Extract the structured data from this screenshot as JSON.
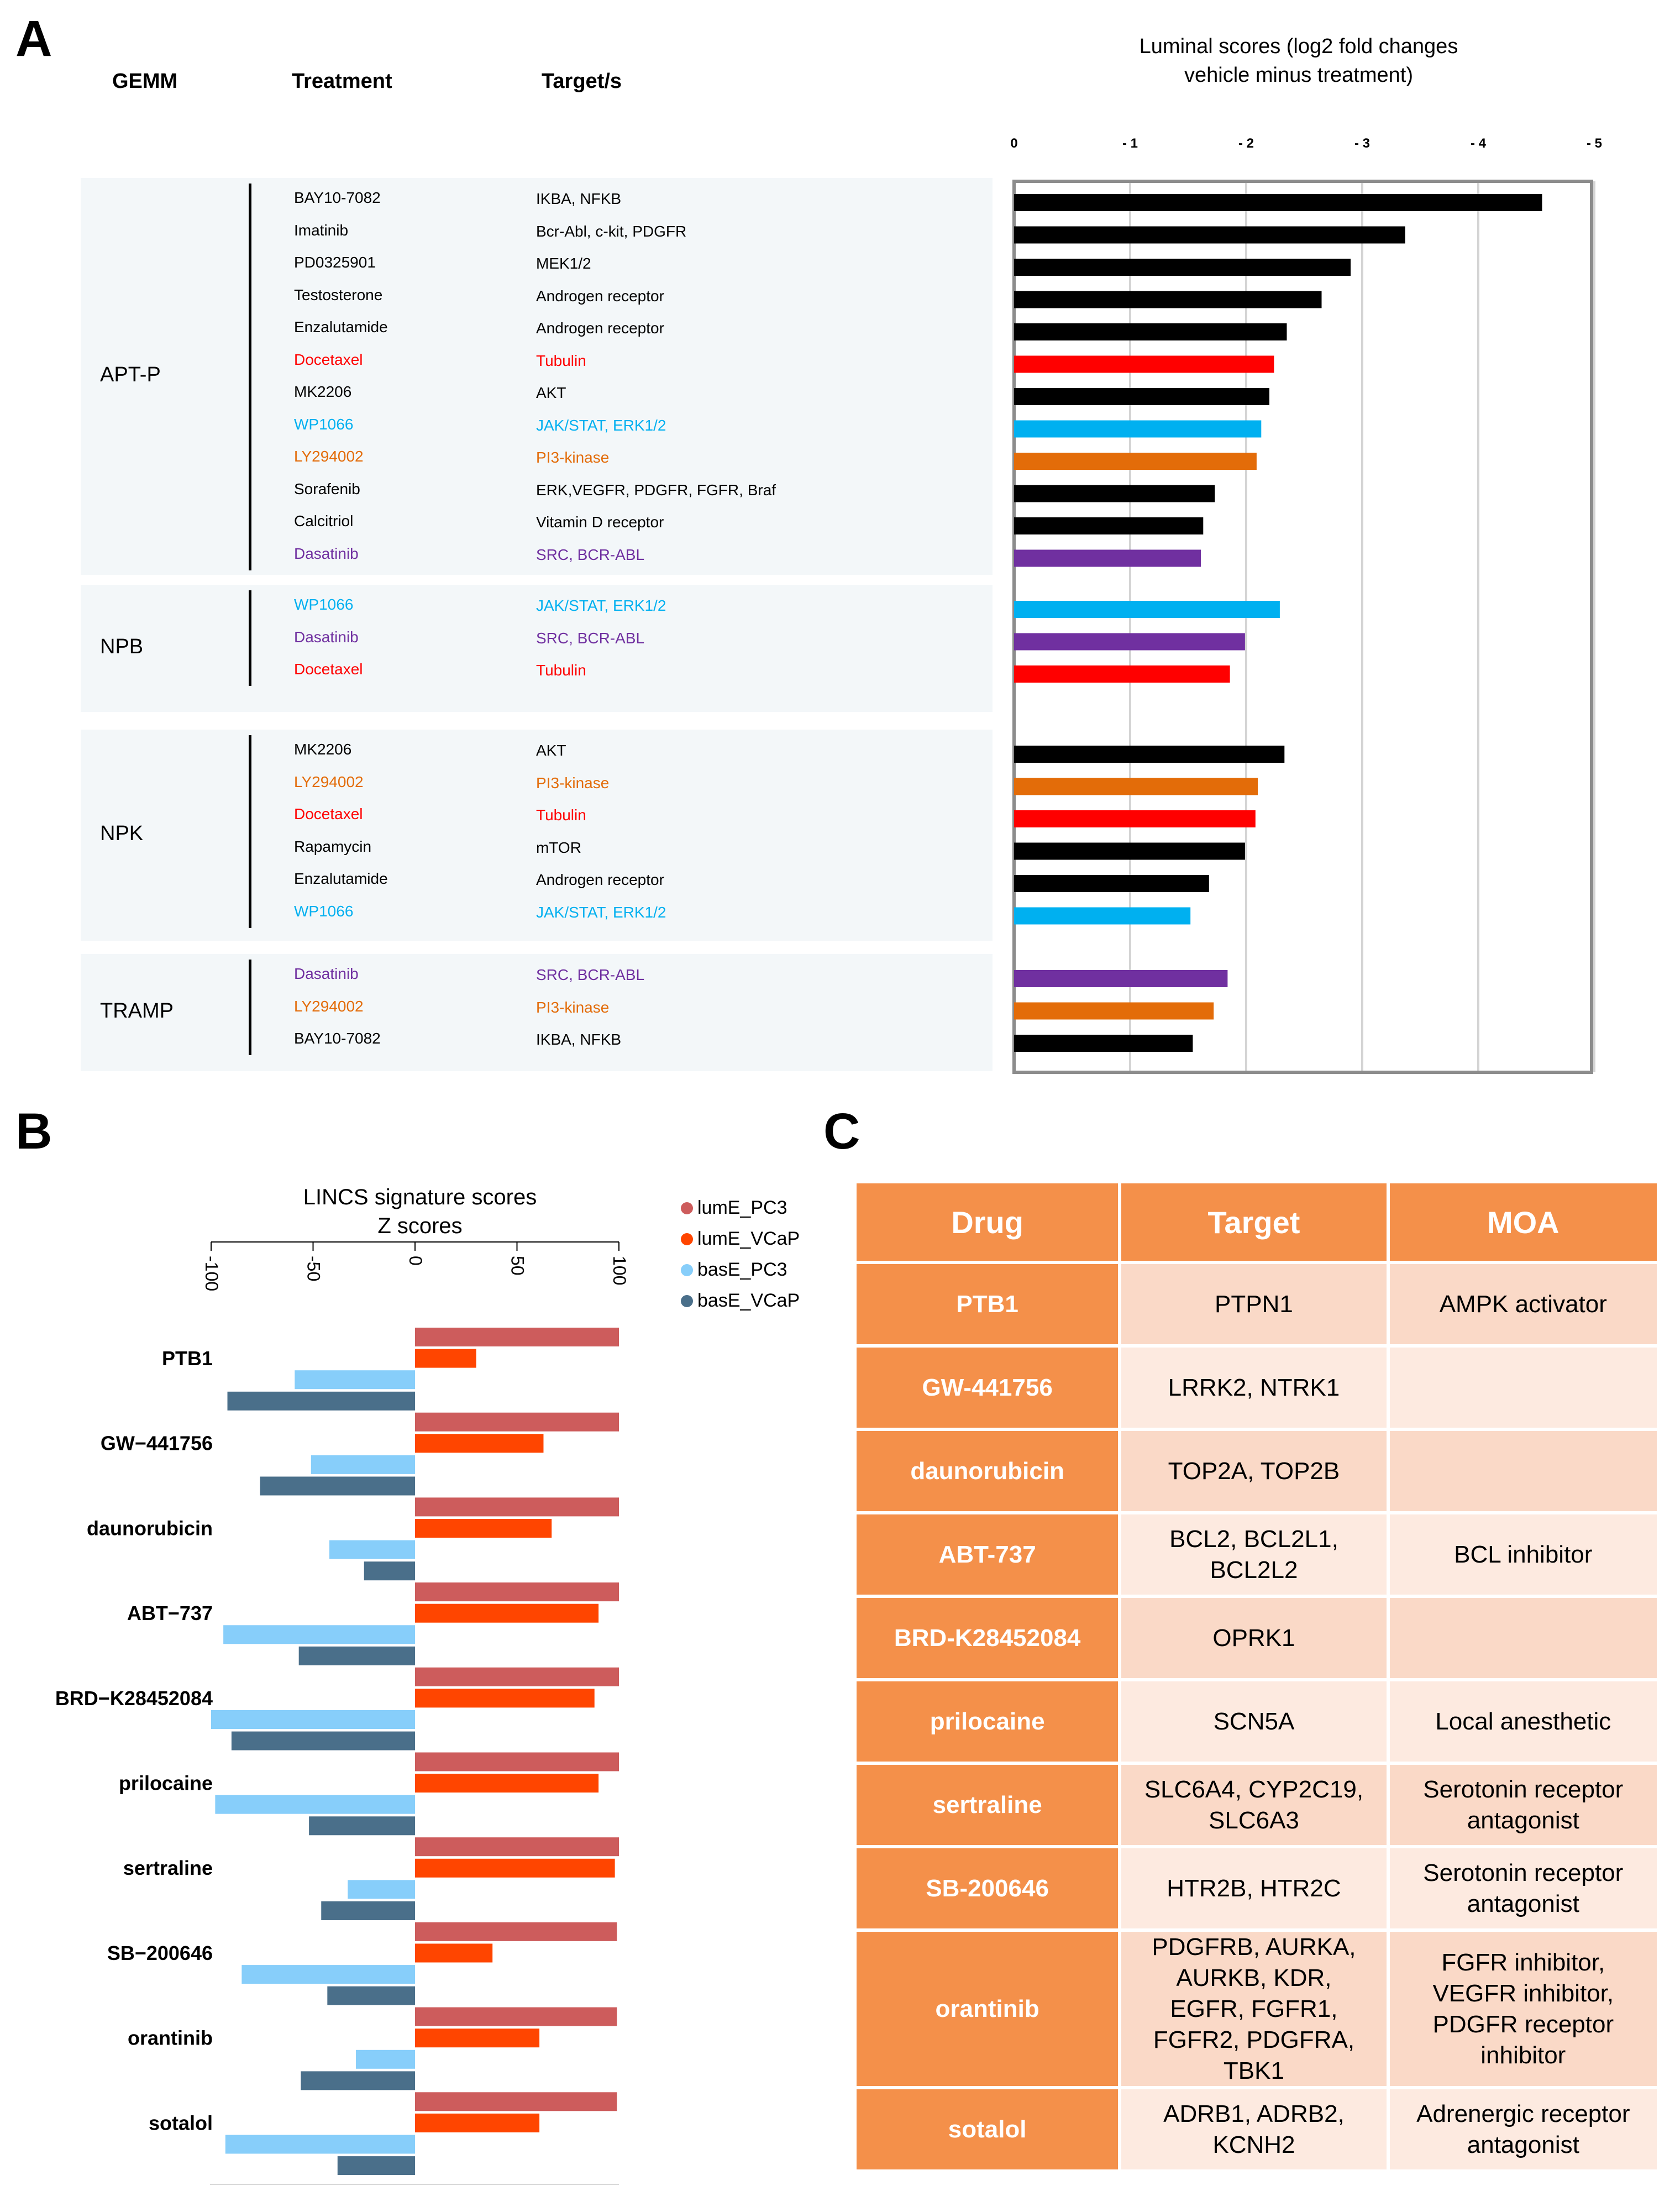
{
  "panel_a": {
    "letter": "A",
    "headers": {
      "gemm": "GEMM",
      "treatment": "Treatment",
      "targets": "Target/s"
    },
    "groups": [
      {
        "name": "APT-P",
        "rows": [
          {
            "treatment": "BAY10-7082",
            "target": "IKBA,  NFKB",
            "color": "#000000"
          },
          {
            "treatment": "Imatinib",
            "target": "Bcr-Abl,  c-kit,  PDGFR",
            "color": "#000000"
          },
          {
            "treatment": "PD0325901",
            "target": "MEK1/2",
            "color": "#000000"
          },
          {
            "treatment": "Testosterone",
            "target": "Androgen   receptor",
            "color": "#000000"
          },
          {
            "treatment": "Enzalutamide",
            "target": "Androgen   receptor",
            "color": "#000000"
          },
          {
            "treatment": "Docetaxel",
            "target": "Tubulin",
            "color": "#ff0000"
          },
          {
            "treatment": "MK2206",
            "target": "AKT",
            "color": "#000000"
          },
          {
            "treatment": "WP1066",
            "target": "JAK/STAT,   ERK1/2",
            "color": "#00b0f0"
          },
          {
            "treatment": "LY294002",
            "target": "PI3-kinase",
            "color": "#e36c09"
          },
          {
            "treatment": "Sorafenib",
            "target": "ERK,VEGFR,   PDGFR,  FGFR,  Braf",
            "color": "#000000"
          },
          {
            "treatment": "Calcitriol",
            "target": "Vitamin  D receptor",
            "color": "#000000"
          },
          {
            "treatment": "Dasatinib",
            "target": "SRC,  BCR-ABL",
            "color": "#7030a0"
          }
        ]
      },
      {
        "name": "NPB",
        "rows": [
          {
            "treatment": "WP1066",
            "target": "JAK/STAT,   ERK1/2",
            "color": "#00b0f0"
          },
          {
            "treatment": "Dasatinib",
            "target": "SRC,  BCR-ABL",
            "color": "#7030a0"
          },
          {
            "treatment": "Docetaxel",
            "target": "Tubulin",
            "color": "#ff0000"
          }
        ]
      },
      {
        "name": "NPK",
        "rows": [
          {
            "treatment": "MK2206",
            "target": "AKT",
            "color": "#000000"
          },
          {
            "treatment": "LY294002",
            "target": "PI3-kinase",
            "color": "#e36c09"
          },
          {
            "treatment": "Docetaxel",
            "target": "Tubulin",
            "color": "#ff0000"
          },
          {
            "treatment": "Rapamycin",
            "target": "mTOR",
            "color": "#000000"
          },
          {
            "treatment": "Enzalutamide",
            "target": "Androgen   receptor",
            "color": "#000000"
          },
          {
            "treatment": "WP1066",
            "target": "JAK/STAT,   ERK1/2",
            "color": "#00b0f0"
          }
        ]
      },
      {
        "name": "TRAMP",
        "rows": [
          {
            "treatment": "Dasatinib",
            "target": "SRC,  BCR-ABL",
            "color": "#7030a0"
          },
          {
            "treatment": "LY294002",
            "target": "PI3-kinase",
            "color": "#e36c09"
          },
          {
            "treatment": "BAY10-7082",
            "target": "IKBA,  NFKB",
            "color": "#000000"
          }
        ]
      }
    ]
  },
  "chart_data": [
    {
      "type": "bar",
      "orientation": "horizontal",
      "title": "Luminal scores (log2 fold changes vehicle minus treatment)",
      "title_lines": [
        "Luminal scores (log2 fold changes",
        "vehicle minus treatment)"
      ],
      "xlim": [
        0,
        -5
      ],
      "ticks": [
        0,
        -1,
        -2,
        -3,
        -4,
        -5
      ],
      "tick_labels": [
        "0",
        "- 1",
        "- 2",
        "- 3",
        "- 4",
        "- 5"
      ],
      "grid": true,
      "bar_groups": [
        {
          "group": "APT-P",
          "bars": [
            {
              "label": "BAY10-7082",
              "value": -4.55,
              "color": "#000000"
            },
            {
              "label": "Imatinib",
              "value": -3.37,
              "color": "#000000"
            },
            {
              "label": "PD0325901",
              "value": -2.9,
              "color": "#000000"
            },
            {
              "label": "Testosterone",
              "value": -2.65,
              "color": "#000000"
            },
            {
              "label": "Enzalutamide",
              "value": -2.35,
              "color": "#000000"
            },
            {
              "label": "Docetaxel",
              "value": -2.24,
              "color": "#ff0000"
            },
            {
              "label": "MK2206",
              "value": -2.2,
              "color": "#000000"
            },
            {
              "label": "WP1066",
              "value": -2.13,
              "color": "#00b0f0"
            },
            {
              "label": "LY294002",
              "value": -2.09,
              "color": "#e36c09"
            },
            {
              "label": "Sorafenib",
              "value": -1.73,
              "color": "#000000"
            },
            {
              "label": "Calcitriol",
              "value": -1.63,
              "color": "#000000"
            },
            {
              "label": "Dasatinib",
              "value": -1.61,
              "color": "#7030a0"
            }
          ]
        },
        {
          "group": "NPB",
          "bars": [
            {
              "label": "WP1066",
              "value": -2.29,
              "color": "#00b0f0"
            },
            {
              "label": "Dasatinib",
              "value": -1.99,
              "color": "#7030a0"
            },
            {
              "label": "Docetaxel",
              "value": -1.86,
              "color": "#ff0000"
            }
          ]
        },
        {
          "group": "NPK",
          "bars": [
            {
              "label": "MK2206",
              "value": -2.33,
              "color": "#000000"
            },
            {
              "label": "LY294002",
              "value": -2.1,
              "color": "#e36c09"
            },
            {
              "label": "Docetaxel",
              "value": -2.08,
              "color": "#ff0000"
            },
            {
              "label": "Rapamycin",
              "value": -1.99,
              "color": "#000000"
            },
            {
              "label": "Enzalutamide",
              "value": -1.68,
              "color": "#000000"
            },
            {
              "label": "WP1066",
              "value": -1.52,
              "color": "#00b0f0"
            }
          ]
        },
        {
          "group": "TRAMP",
          "bars": [
            {
              "label": "Dasatinib",
              "value": -1.84,
              "color": "#7030a0"
            },
            {
              "label": "LY294002",
              "value": -1.72,
              "color": "#e36c09"
            },
            {
              "label": "BAY10-7082",
              "value": -1.54,
              "color": "#000000"
            }
          ]
        }
      ]
    },
    {
      "type": "bar",
      "orientation": "horizontal",
      "title": "LINCS signature scores Z scores",
      "title_lines": [
        "LINCS signature scores",
        "Z scores"
      ],
      "xlim": [
        -100,
        100
      ],
      "ticks": [
        -100,
        -50,
        0,
        50,
        100
      ],
      "tick_labels": [
        "-100",
        "-50",
        "0",
        "50",
        "100"
      ],
      "grid": false,
      "legend_position": "top-right",
      "categories": [
        "PTB1",
        "GW−441756",
        "daunorubicin",
        "ABT−737",
        "BRD−K28452084",
        "prilocaine",
        "sertraline",
        "SB−200646",
        "orantinib",
        "sotalol"
      ],
      "series": [
        {
          "name": "lumE_PC3",
          "color": "#cd5c5c",
          "values": [
            100,
            100,
            100,
            100,
            100,
            100,
            100,
            99,
            99,
            99
          ]
        },
        {
          "name": "lumE_VCaP",
          "color": "#ff4500",
          "values": [
            30,
            63,
            67,
            90,
            88,
            90,
            98,
            38,
            61,
            61
          ]
        },
        {
          "name": "basE_PC3",
          "color": "#87cefa",
          "values": [
            -59,
            -51,
            -42,
            -94,
            -100,
            -98,
            -33,
            -85,
            -29,
            -93
          ]
        },
        {
          "name": "basE_VCaP",
          "color": "#4a6f8a",
          "values": [
            -92,
            -76,
            -25,
            -57,
            -90,
            -52,
            -46,
            -43,
            -56,
            -38
          ]
        }
      ]
    }
  ],
  "panel_b": {
    "letter": "B"
  },
  "panel_c": {
    "letter": "C",
    "headers": [
      "Drug",
      "Target",
      "MOA"
    ],
    "rows": [
      {
        "drug": "PTB1",
        "target": [
          "PTPN1"
        ],
        "moa": [
          "AMPK activator"
        ]
      },
      {
        "drug": "GW-441756",
        "target": [
          "LRRK2, NTRK1"
        ],
        "moa": []
      },
      {
        "drug": "daunorubicin",
        "target": [
          "TOP2A, TOP2B"
        ],
        "moa": []
      },
      {
        "drug": "ABT-737",
        "target": [
          "BCL2, BCL2L1,",
          "BCL2L2"
        ],
        "moa": [
          "BCL inhibitor"
        ]
      },
      {
        "drug": "BRD-K28452084",
        "target": [
          "OPRK1"
        ],
        "moa": []
      },
      {
        "drug": "prilocaine",
        "target": [
          "SCN5A"
        ],
        "moa": [
          "Local anesthetic"
        ]
      },
      {
        "drug": "sertraline",
        "target": [
          "SLC6A4, CYP2C19,",
          "SLC6A3"
        ],
        "moa": [
          "Serotonin receptor",
          "antagonist"
        ]
      },
      {
        "drug": "SB-200646",
        "target": [
          "HTR2B, HTR2C"
        ],
        "moa": [
          "Serotonin receptor",
          "antagonist"
        ]
      },
      {
        "drug": "orantinib",
        "target": [
          "PDGFRB, AURKA,",
          "AURKB, KDR,",
          "EGFR, FGFR1,",
          "FGFR2, PDGFRA,",
          "TBK1"
        ],
        "moa": [
          "FGFR inhibitor,",
          "VEGFR inhibitor,",
          "PDGFR receptor",
          "inhibitor"
        ]
      },
      {
        "drug": "sotalol",
        "target": [
          "ADRB1, ADRB2,",
          "KCNH2"
        ],
        "moa": [
          "Adrenergic receptor",
          "antagonist"
        ]
      }
    ]
  }
}
